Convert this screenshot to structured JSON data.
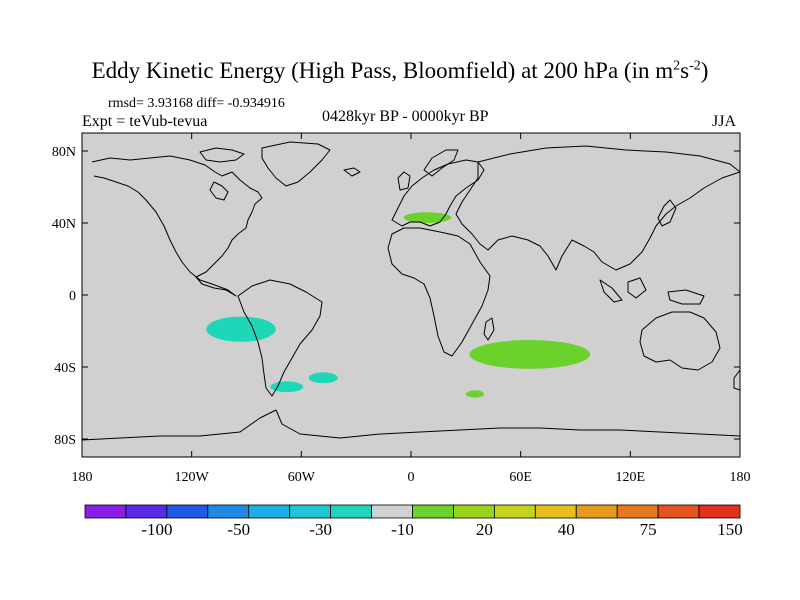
{
  "title": {
    "main": "Eddy Kinetic Energy (High Pass, Bloomfield) at 200 hPa (in m",
    "sup1": "2",
    "mid": "s",
    "sup2": "-2",
    "end": ")"
  },
  "stats": "rmsd= 3.93168 diff= -0.934916",
  "expt": "Expt = teVub-tevua",
  "period": "0428kyr BP - 0000kyr BP",
  "season": "JJA",
  "map": {
    "x_range": [
      -180,
      180
    ],
    "y_range": [
      -90,
      90
    ],
    "x_ticks": [
      {
        "value": -180,
        "label": "180"
      },
      {
        "value": -120,
        "label": "120W"
      },
      {
        "value": -60,
        "label": "60W"
      },
      {
        "value": 0,
        "label": "0"
      },
      {
        "value": 60,
        "label": "60E"
      },
      {
        "value": 120,
        "label": "120E"
      },
      {
        "value": 180,
        "label": "180"
      }
    ],
    "y_ticks": [
      {
        "value": 80,
        "label": "80N"
      },
      {
        "value": 40,
        "label": "40N"
      },
      {
        "value": 0,
        "label": "0"
      },
      {
        "value": -40,
        "label": "40S"
      },
      {
        "value": -80,
        "label": "80S"
      }
    ],
    "background_color": "#d0d0d0",
    "anomaly_regions": [
      {
        "id": "mediterranean",
        "level": "20",
        "color": "#6ad22b",
        "center": [
          9,
          43
        ],
        "radius": [
          13,
          3
        ]
      },
      {
        "id": "south-east-pacific",
        "level": "-10",
        "color": "#1ed7b8",
        "center": [
          -93,
          -19
        ],
        "radius": [
          19,
          7
        ]
      },
      {
        "id": "drake-passage",
        "level": "-10",
        "color": "#1ed7b8",
        "center": [
          -68,
          -51
        ],
        "radius": [
          9,
          3
        ]
      },
      {
        "id": "south-atlantic",
        "level": "-10",
        "color": "#1ed7b8",
        "center": [
          -48,
          -46
        ],
        "radius": [
          8,
          3
        ]
      },
      {
        "id": "south-indian-ocean",
        "level": "20",
        "color": "#6ad22b",
        "center": [
          65,
          -33
        ],
        "radius": [
          33,
          8
        ]
      },
      {
        "id": "south-of-africa",
        "level": "20",
        "color": "#6ad22b",
        "center": [
          35,
          -55
        ],
        "radius": [
          5,
          2
        ]
      }
    ]
  },
  "colorbar": {
    "colors": [
      "#8a1ee6",
      "#5a2ae6",
      "#1e5ae6",
      "#1e8ae6",
      "#1eaee6",
      "#1ec6d6",
      "#1ed7b8",
      "#d0d0d0",
      "#6ad22b",
      "#9ad21e",
      "#c6d21e",
      "#e6be1e",
      "#e69a1e",
      "#e6781e",
      "#e6521e",
      "#e6301e"
    ],
    "labels": [
      {
        "text": "-100",
        "index": 2
      },
      {
        "text": "-50",
        "index": 4
      },
      {
        "text": "-30",
        "index": 6
      },
      {
        "text": "-10",
        "index": 8
      },
      {
        "text": "20",
        "index": 10
      },
      {
        "text": "40",
        "index": 12
      },
      {
        "text": "75",
        "index": 14
      },
      {
        "text": "150",
        "index": 16
      }
    ]
  }
}
